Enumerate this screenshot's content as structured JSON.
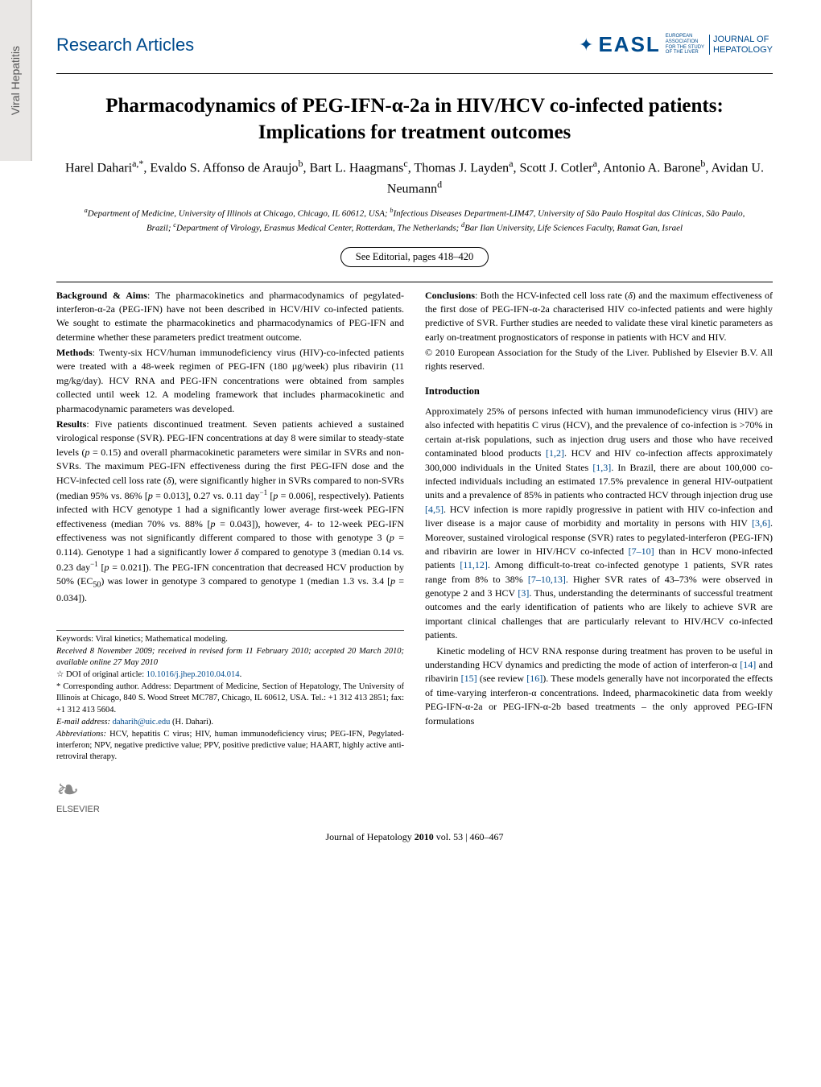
{
  "sideTab": "Viral Hepatitis",
  "sectionLabel": "Research Articles",
  "logo": {
    "easl": "EASL",
    "sub": "EUROPEAN\nASSOCIATION\nFOR THE STUDY\nOF THE LIVER",
    "journal1": "JOURNAL OF",
    "journal2": "HEPATOLOGY"
  },
  "title": "Pharmacodynamics of PEG-IFN-α-2a in HIV/HCV co-infected patients: Implications for treatment outcomes",
  "authorsHtml": "Harel Dahari<sup>a,*</sup>, Evaldo S. Affonso de Araujo<sup>b</sup>, Bart L. Haagmans<sup>c</sup>, Thomas J. Layden<sup>a</sup>, Scott J. Cotler<sup>a</sup>, Antonio A. Barone<sup>b</sup>, Avidan U. Neumann<sup>d</sup>",
  "affiliationsHtml": "<sup>a</sup>Department of Medicine, University of Illinois at Chicago, Chicago, IL 60612, USA; <sup>b</sup>Infectious Diseases Department-LIM47, University of São Paulo Hospital das Clínicas, São Paulo, Brazil; <sup>c</sup>Department of Virology, Erasmus Medical Center, Rotterdam, The Netherlands; <sup>d</sup>Bar Ilan University, Life Sciences Faculty, Ramat Gan, Israel",
  "editorial": "See Editorial, pages 418–420",
  "abstract": {
    "background": "<span class='run-in'>Background &amp; Aims</span>: The pharmacokinetics and pharmacodynamics of pegylated-interferon-α-2a (PEG-IFN) have not been described in HCV/HIV co-infected patients. We sought to estimate the pharmacokinetics and pharmacodynamics of PEG-IFN and determine whether these parameters predict treatment outcome.",
    "methods": "<span class='run-in'>Methods</span>: Twenty-six HCV/human immunodeficiency virus (HIV)-co-infected patients were treated with a 48-week regimen of PEG-IFN (180 μg/week) plus ribavirin (11 mg/kg/day). HCV RNA and PEG-IFN concentrations were obtained from samples collected until week 12. A modeling framework that includes pharmacokinetic and pharmacodynamic parameters was developed.",
    "results": "<span class='run-in'>Results</span>: Five patients discontinued treatment. Seven patients achieved a sustained virological response (SVR). PEG-IFN concentrations at day 8 were similar to steady-state levels (<i>p</i> = 0.15) and overall pharmacokinetic parameters were similar in SVRs and non-SVRs. The maximum PEG-IFN effectiveness during the first PEG-IFN dose and the HCV-infected cell loss rate (<i>δ</i>), were significantly higher in SVRs compared to non-SVRs (median 95% vs. 86% [<i>p</i> = 0.013], 0.27 vs. 0.11 day<sup>−1</sup> [<i>p</i> = 0.006], respectively). Patients infected with HCV genotype 1 had a significantly lower average first-week PEG-IFN effectiveness (median 70% vs. 88% [<i>p</i> = 0.043]), however, 4- to 12-week PEG-IFN effectiveness was not significantly different compared to those with genotype 3 (<i>p</i> = 0.114). Genotype 1 had a significantly lower <i>δ</i> compared to genotype 3 (median 0.14 vs. 0.23 day<sup>−1</sup> [<i>p</i> = 0.021]). The PEG-IFN concentration that decreased HCV production by 50% (EC<sub>50</sub>) was lower in genotype 3 compared to genotype 1 (median 1.3 vs. 3.4 [<i>p</i> = 0.034]).",
    "conclusions": "<span class='run-in'>Conclusions</span>: Both the HCV-infected cell loss rate (<i>δ</i>) and the maximum effectiveness of the first dose of PEG-IFN-α-2a characterised HIV co-infected patients and were highly predictive of SVR. Further studies are needed to validate these viral kinetic parameters as early on-treatment prognosticators of response in patients with HCV and HIV.",
    "copyright": "© 2010 European Association for the Study of the Liver. Published by Elsevier B.V. All rights reserved."
  },
  "introHead": "Introduction",
  "introBody": "Approximately 25% of persons infected with human immunodeficiency virus (HIV) are also infected with hepatitis C virus (HCV), and the prevalence of co-infection is &gt;70% in certain at-risk populations, such as injection drug users and those who have received contaminated blood products <span class='ref-link'>[1,2]</span>. HCV and HIV co-infection affects approximately 300,000 individuals in the United States <span class='ref-link'>[1,3]</span>. In Brazil, there are about 100,000 co-infected individuals including an estimated 17.5% prevalence in general HIV-outpatient units and a prevalence of 85% in patients who contracted HCV through injection drug use <span class='ref-link'>[4,5]</span>. HCV infection is more rapidly progressive in patient with HIV co-infection and liver disease is a major cause of morbidity and mortality in persons with HIV <span class='ref-link'>[3,6]</span>. Moreover, sustained virological response (SVR) rates to pegylated-interferon (PEG-IFN) and ribavirin are lower in HIV/HCV co-infected <span class='ref-link'>[7–10]</span> than in HCV mono-infected patients <span class='ref-link'>[11,12]</span>. Among difficult-to-treat co-infected genotype 1 patients, SVR rates range from 8% to 38% <span class='ref-link'>[7–10,13]</span>. Higher SVR rates of 43–73% were observed in genotype 2 and 3 HCV <span class='ref-link'>[3]</span>. Thus, understanding the determinants of successful treatment outcomes and the early identification of patients who are likely to achieve SVR are important clinical challenges that are particularly relevant to HIV/HCV co-infected patients.",
  "introBody2": "Kinetic modeling of HCV RNA response during treatment has proven to be useful in understanding HCV dynamics and predicting the mode of action of interferon-α <span class='ref-link'>[14]</span> and ribavirin <span class='ref-link'>[15]</span> (see review <span class='ref-link'>[16]</span>). These models generally have not incorporated the effects of time-varying interferon-α concentrations. Indeed, pharmacokinetic data from weekly PEG-IFN-α-2a or PEG-IFN-α-2b based treatments – the only approved PEG-IFN formulations",
  "keywords": {
    "kw": "Keywords: Viral kinetics; Mathematical modeling.",
    "received": "Received 8 November 2009; received in revised form 11 February 2010; accepted 20 March 2010;  available online 27 May 2010",
    "doiLabel": "☆ DOI of original article: ",
    "doi": "10.1016/j.jhep.2010.04.014",
    "doiSuffix": ".",
    "corresponding": "* Corresponding author. Address: Department of Medicine, Section of Hepatology, The University of Illinois at Chicago, 840 S. Wood Street MC787, Chicago, IL 60612, USA. Tel.: +1 312 413 2851; fax: +1 312 413 5604.",
    "emailLabel": "E-mail address: ",
    "email": "daharih@uic.edu",
    "emailSuffix": " (H. Dahari).",
    "abbrev": "Abbreviations: HCV, hepatitis C virus; HIV, human immunodeficiency virus; PEG-IFN, Pegylated-interferon; NPV, negative predictive value; PPV, positive predictive value; HAART, highly active anti-retroviral therapy."
  },
  "elsevier": "ELSEVIER",
  "footerHtml": "Journal of Hepatology <b>2010</b> vol. 53 | 460–467",
  "colors": {
    "brand": "#004b8d",
    "sidebg": "#e9e7e5"
  }
}
